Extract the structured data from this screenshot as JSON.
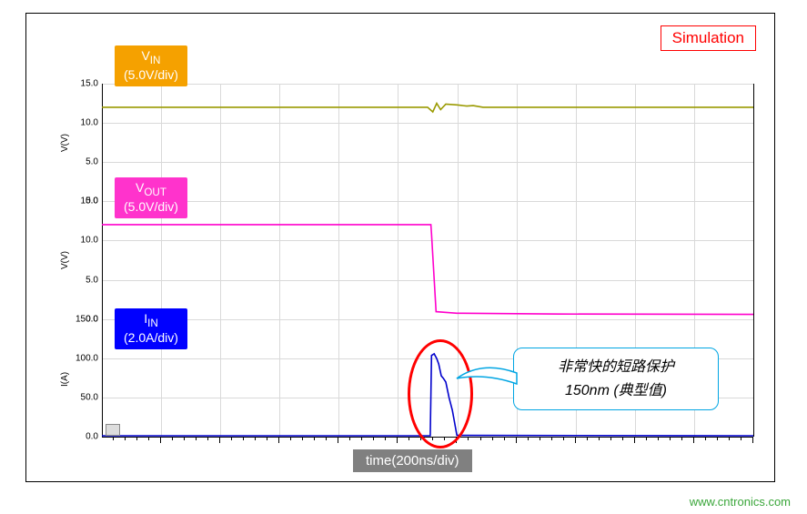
{
  "frame": {
    "border_color": "#000000",
    "background": "#ffffff"
  },
  "simulation_label": {
    "text": "Simulation",
    "color": "#ff0000"
  },
  "time_axis": {
    "label": "time(200ns/div)",
    "divisions": 11,
    "unit": "200ns",
    "background_color": "#808080",
    "text_color": "#ffffff"
  },
  "panels": [
    {
      "id": "vin",
      "badge": {
        "line1_html": "V<sub>IN</sub>",
        "line2": "(5.0V/div)",
        "bg_color": "#f5a100"
      },
      "y_axis_title": "V(V)",
      "y_ticks": [
        0.0,
        5.0,
        10.0,
        15.0
      ],
      "trace_color": "#9a9a00",
      "trace": {
        "type": "line",
        "points": [
          [
            0.0,
            12.0
          ],
          [
            0.5,
            12.0
          ],
          [
            0.508,
            11.4
          ],
          [
            0.514,
            12.5
          ],
          [
            0.52,
            11.7
          ],
          [
            0.528,
            12.4
          ],
          [
            0.545,
            12.3
          ],
          [
            0.56,
            12.15
          ],
          [
            0.57,
            12.2
          ],
          [
            0.585,
            12.0
          ],
          [
            1.0,
            12.0
          ]
        ]
      }
    },
    {
      "id": "vout",
      "badge": {
        "line1_html": "V<sub>OUT</sub>",
        "line2": "(5.0V/div)",
        "bg_color": "#ff33cc"
      },
      "y_axis_title": "V(V)",
      "y_ticks": [
        0.0,
        5.0,
        10.0,
        15.0
      ],
      "trace_color": "#ff00cc",
      "trace": {
        "type": "line",
        "points": [
          [
            0.0,
            12.0
          ],
          [
            0.505,
            12.0
          ],
          [
            0.506,
            10.8
          ],
          [
            0.513,
            0.9
          ],
          [
            0.545,
            0.7
          ],
          [
            0.7,
            0.6
          ],
          [
            1.0,
            0.55
          ]
        ]
      }
    },
    {
      "id": "iin",
      "badge": {
        "line1_html": "I<sub>IN</sub>",
        "line2": "(2.0A/div)",
        "bg_color": "#0000ff"
      },
      "y_axis_title": "I(A)",
      "y_ticks": [
        0.0,
        50.0,
        100.0,
        150.0
      ],
      "trace_color": "#0000cc",
      "trace": {
        "type": "line",
        "points": [
          [
            0.0,
            1.5
          ],
          [
            0.504,
            1.5
          ],
          [
            0.506,
            104.0
          ],
          [
            0.51,
            106.0
          ],
          [
            0.514,
            100.0
          ],
          [
            0.517,
            93.0
          ],
          [
            0.521,
            78.0
          ],
          [
            0.524,
            75.0
          ],
          [
            0.528,
            70.0
          ],
          [
            0.533,
            50.0
          ],
          [
            0.538,
            34.0
          ],
          [
            0.545,
            2.0
          ],
          [
            1.0,
            1.5
          ]
        ]
      }
    }
  ],
  "callout": {
    "line1": "非常快的短路保护",
    "line2": "150nm (典型值)",
    "border_color": "#00a5e3",
    "bg_color": "#ffffff"
  },
  "red_oval": {
    "color": "#ff0000"
  },
  "watermark": {
    "text": "www.cntronics.com",
    "color": "#3aa63a"
  },
  "grid": {
    "line_color": "#d9d9d9",
    "v_divisions": 11
  }
}
